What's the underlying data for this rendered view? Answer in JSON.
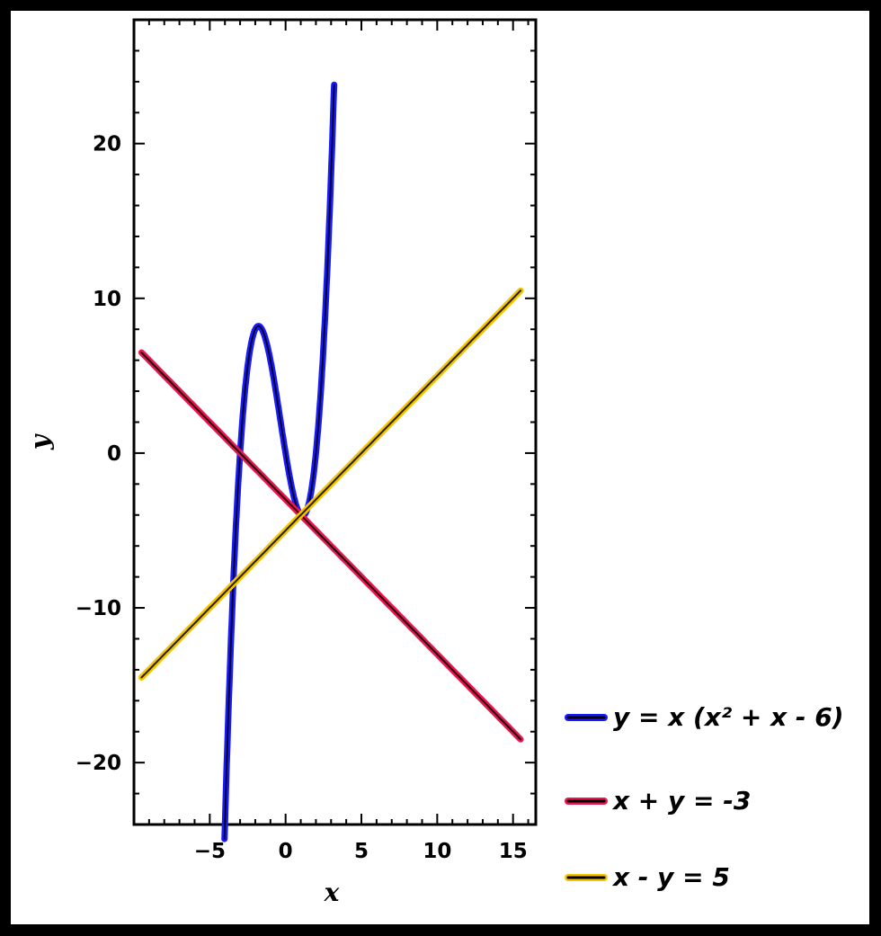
{
  "chart_data": {
    "type": "line",
    "xlabel": "x",
    "ylabel": "y",
    "xlim": [
      -10,
      16.5
    ],
    "ylim": [
      -24,
      28
    ],
    "x_ticks": [
      -5,
      0,
      5,
      10,
      15
    ],
    "x_tick_labels": [
      "−5",
      "0",
      "5",
      "10",
      "15"
    ],
    "y_ticks": [
      -20,
      -10,
      0,
      10,
      20
    ],
    "y_tick_labels": [
      "−20",
      "−10",
      "0",
      "10",
      "20"
    ],
    "grid": false,
    "legend_position": "bottom-right outside",
    "series": [
      {
        "name": "y = x (x² + x - 6)",
        "color": "#1a1aff",
        "x_range": [
          -4.2,
          3.2
        ],
        "expression": "x*(x^2+x-6)"
      },
      {
        "name": "x + y = -3",
        "color": "#e8174f",
        "x_range": [
          -9.5,
          15.5
        ],
        "expression": "-3 - x"
      },
      {
        "name": "x - y = 5",
        "color": "#f5c400",
        "x_range": [
          -9.5,
          15.5
        ],
        "expression": "x - 5"
      }
    ]
  }
}
